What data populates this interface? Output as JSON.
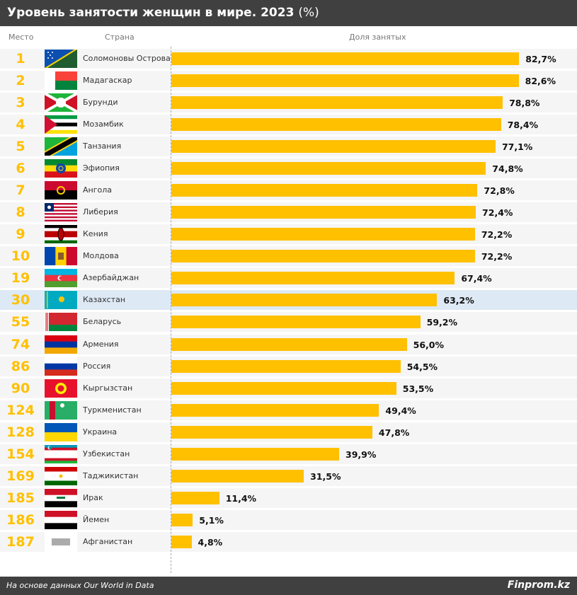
{
  "title": "Уровень занятости женщин в мире. 2023",
  "title_unit": "(%)",
  "headers": {
    "rank": "Место",
    "country": "Страна",
    "share": "Доля занятых"
  },
  "footer": {
    "source": "На основе данных Our World in Data",
    "brand": "Finprom.kz"
  },
  "colors": {
    "bar": "#FFC000",
    "rank": "#FFC000",
    "highlight": "#dde9f5",
    "row": "#f5f5f5",
    "titlebar": "#404040"
  },
  "chart_data": {
    "type": "bar",
    "orientation": "horizontal",
    "title": "Уровень занятости женщин в мире. 2023 (%)",
    "xlabel": "Доля занятых",
    "xlim": [
      0,
      85
    ],
    "grid": false,
    "highlight": "Казахстан",
    "rows": [
      {
        "rank": "1",
        "country": "Соломоновы Острова",
        "value": 82.7,
        "label": "82,7%",
        "flag": "solomon"
      },
      {
        "rank": "2",
        "country": "Мадагаскар",
        "value": 82.6,
        "label": "82,6%",
        "flag": "madagascar"
      },
      {
        "rank": "3",
        "country": "Бурунди",
        "value": 78.8,
        "label": "78,8%",
        "flag": "burundi"
      },
      {
        "rank": "4",
        "country": "Мозамбик",
        "value": 78.4,
        "label": "78,4%",
        "flag": "mozambique"
      },
      {
        "rank": "5",
        "country": "Танзания",
        "value": 77.1,
        "label": "77,1%",
        "flag": "tanzania"
      },
      {
        "rank": "6",
        "country": "Эфиопия",
        "value": 74.8,
        "label": "74,8%",
        "flag": "ethiopia"
      },
      {
        "rank": "7",
        "country": "Ангола",
        "value": 72.8,
        "label": "72,8%",
        "flag": "angola"
      },
      {
        "rank": "8",
        "country": "Либерия",
        "value": 72.4,
        "label": "72,4%",
        "flag": "liberia"
      },
      {
        "rank": "9",
        "country": "Кения",
        "value": 72.2,
        "label": "72,2%",
        "flag": "kenya"
      },
      {
        "rank": "10",
        "country": "Молдова",
        "value": 72.2,
        "label": "72,2%",
        "flag": "moldova"
      },
      {
        "rank": "19",
        "country": "Азербайджан",
        "value": 67.4,
        "label": "67,4%",
        "flag": "azerbaijan"
      },
      {
        "rank": "30",
        "country": "Казахстан",
        "value": 63.2,
        "label": "63,2%",
        "flag": "kazakhstan"
      },
      {
        "rank": "55",
        "country": "Беларусь",
        "value": 59.2,
        "label": "59,2%",
        "flag": "belarus"
      },
      {
        "rank": "74",
        "country": "Армения",
        "value": 56.0,
        "label": "56,0%",
        "flag": "armenia"
      },
      {
        "rank": "86",
        "country": "Россия",
        "value": 54.5,
        "label": "54,5%",
        "flag": "russia"
      },
      {
        "rank": "90",
        "country": "Кыргызстан",
        "value": 53.5,
        "label": "53,5%",
        "flag": "kyrgyzstan"
      },
      {
        "rank": "124",
        "country": "Туркменистан",
        "value": 49.4,
        "label": "49,4%",
        "flag": "turkmenistan"
      },
      {
        "rank": "128",
        "country": "Украина",
        "value": 47.8,
        "label": "47,8%",
        "flag": "ukraine"
      },
      {
        "rank": "154",
        "country": "Узбекистан",
        "value": 39.9,
        "label": "39,9%",
        "flag": "uzbekistan"
      },
      {
        "rank": "169",
        "country": "Таджикистан",
        "value": 31.5,
        "label": "31,5%",
        "flag": "tajikistan"
      },
      {
        "rank": "185",
        "country": "Ирак",
        "value": 11.4,
        "label": "11,4%",
        "flag": "iraq"
      },
      {
        "rank": "186",
        "country": "Йемен",
        "value": 5.1,
        "label": "5,1%",
        "flag": "yemen"
      },
      {
        "rank": "187",
        "country": "Афганистан",
        "value": 4.8,
        "label": "4,8%",
        "flag": "afghanistan"
      }
    ]
  }
}
